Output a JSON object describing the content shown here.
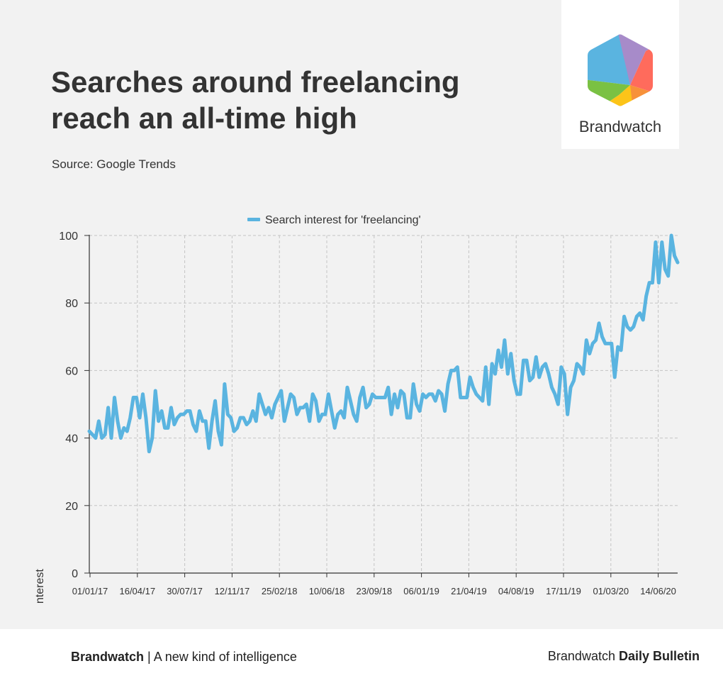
{
  "header": {
    "title": "Searches around freelancing reach an all-time high",
    "source": "Source: Google Trends"
  },
  "logo": {
    "icon": "brandwatch-hexagon-logo",
    "word": "Brandwatch",
    "colors": [
      "#5ab4e0",
      "#a78bc9",
      "#ff6b5c",
      "#f7913a",
      "#fcc419",
      "#7ac143"
    ]
  },
  "footer": {
    "left_brand": "Brandwatch",
    "left_tagline": " | A new kind of intelligence",
    "right_brand": "Brandwatch ",
    "right_product": "Daily Bulletin"
  },
  "chart_data": {
    "type": "line",
    "ylabel": "Search interest",
    "xlabel": "",
    "ylim": [
      0,
      100
    ],
    "yticks": [
      0,
      20,
      40,
      60,
      80,
      100
    ],
    "xtick_labels": [
      "01/01/17",
      "16/04/17",
      "30/07/17",
      "12/11/17",
      "25/02/18",
      "10/06/18",
      "23/09/18",
      "06/01/19",
      "21/04/19",
      "04/08/19",
      "17/11/19",
      "01/03/20",
      "14/06/20"
    ],
    "legend_position": "top-center",
    "grid": true,
    "line_color": "#5ab4e0",
    "series": [
      {
        "name": "Search interest for 'freelancing'",
        "values": [
          42,
          41,
          40,
          45,
          40,
          41,
          49,
          40,
          52,
          45,
          40,
          43,
          42,
          46,
          52,
          52,
          46,
          53,
          46,
          36,
          40,
          54,
          45,
          48,
          43,
          43,
          49,
          44,
          46,
          47,
          47,
          48,
          48,
          44,
          42,
          48,
          45,
          45,
          37,
          45,
          51,
          42,
          38,
          56,
          47,
          46,
          42,
          43,
          46,
          46,
          44,
          45,
          48,
          45,
          53,
          50,
          47,
          49,
          46,
          50,
          52,
          54,
          45,
          49,
          53,
          52,
          47,
          49,
          49,
          50,
          45,
          53,
          51,
          45,
          47,
          47,
          53,
          48,
          43,
          47,
          48,
          46,
          55,
          51,
          47,
          45,
          52,
          55,
          49,
          50,
          53,
          52,
          52,
          52,
          52,
          55,
          47,
          53,
          49,
          54,
          53,
          46,
          46,
          56,
          50,
          48,
          53,
          52,
          53,
          53,
          51,
          54,
          53,
          48,
          56,
          60,
          60,
          61,
          52,
          52,
          52,
          58,
          55,
          53,
          52,
          51,
          61,
          50,
          62,
          59,
          66,
          61,
          69,
          59,
          65,
          57,
          53,
          53,
          63,
          63,
          57,
          58,
          64,
          58,
          61,
          62,
          59,
          55,
          53,
          50,
          61,
          59,
          47,
          55,
          57,
          62,
          61,
          59,
          69,
          65,
          68,
          69,
          74,
          70,
          68,
          68,
          68,
          58,
          67,
          66,
          76,
          73,
          72,
          73,
          76,
          77,
          75,
          82,
          86,
          86,
          98,
          86,
          98,
          90,
          88,
          100,
          94,
          92
        ]
      }
    ]
  }
}
